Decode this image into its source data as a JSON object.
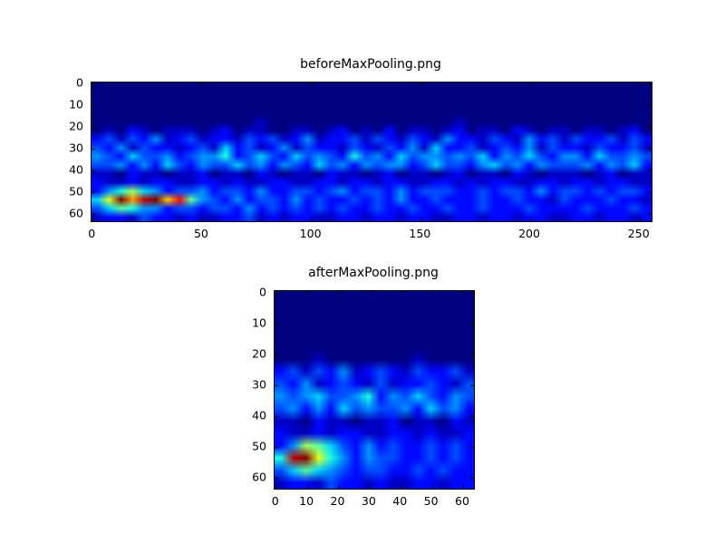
{
  "figure": {
    "background": "#ffffff",
    "text_color": "#000000",
    "colormap_low": "#00007f",
    "colormap_high": "#7f0000"
  },
  "chart_data": [
    {
      "type": "heatmap",
      "title": "beforeMaxPooling.png",
      "xlabel": "",
      "ylabel": "",
      "x_ticks": [
        0,
        50,
        100,
        150,
        200,
        250
      ],
      "y_ticks": [
        0,
        10,
        20,
        30,
        40,
        50,
        60
      ],
      "x_range": [
        -0.5,
        255.5
      ],
      "y_range": [
        -0.5,
        63.5
      ],
      "y_inverted": true,
      "colormap": "jet",
      "legend": "none",
      "grid_lines": false,
      "grid_encoding": "rows top-to-bottom, each char is hex intensity 0-f mapped to 0.0-1.0 on jet colormap",
      "grid": [
        "000000000000000000000000000000000000000000000000",
        "000000000000000000000000000000000000000000000000",
        "000000000000000000000000000000000000000000000000",
        "000000000000000000000000000000000000000000000000",
        "000000000000001000000000000000010000000000000000",
        "010210111012011001101201020110120110210110110120",
        "231324123122132312412231321321422132142313223132",
        "324132212315231241322132132415223123241322132231",
        "432533423446235325343263425344343524353244253343",
        "334242532433534243253424344235332453424333424352",
        "110211011201102101102110120110120110210111012011",
        "211212211221211221122122122112212122112212212211",
        "246854233423324223323423324233322323324233232332",
        "59fbefad7432423324232232324223222322322132223221",
        "357644233233242323232322322322322322232222322232",
        "122132212112231212211221221221122122122112212212"
      ]
    },
    {
      "type": "heatmap",
      "title": "afterMaxPooling.png",
      "xlabel": "",
      "ylabel": "",
      "x_ticks": [
        0,
        10,
        20,
        30,
        40,
        50,
        60
      ],
      "y_ticks": [
        0,
        10,
        20,
        30,
        40,
        50,
        60
      ],
      "x_range": [
        -0.5,
        63.5
      ],
      "y_range": [
        -0.5,
        63.5
      ],
      "y_inverted": true,
      "colormap": "jet",
      "legend": "none",
      "grid_lines": false,
      "grid_encoding": "rows top-to-bottom, each char is hex intensity 0-f mapped to 0.0-1.0 on jet colormap",
      "grid": [
        "0000000000000000",
        "0000000000000000",
        "0000000000000000",
        "0000000000000000",
        "0000000000000000",
        "0001000000010000",
        "2313241232132231",
        "3241232131223213",
        "4345334624353243",
        "3424253433425342",
        "1102110112011021",
        "2112122112212112",
        "2487532423223232",
        "6ef9642433223232",
        "3575432332232322",
        "1221322121122122"
      ]
    }
  ]
}
